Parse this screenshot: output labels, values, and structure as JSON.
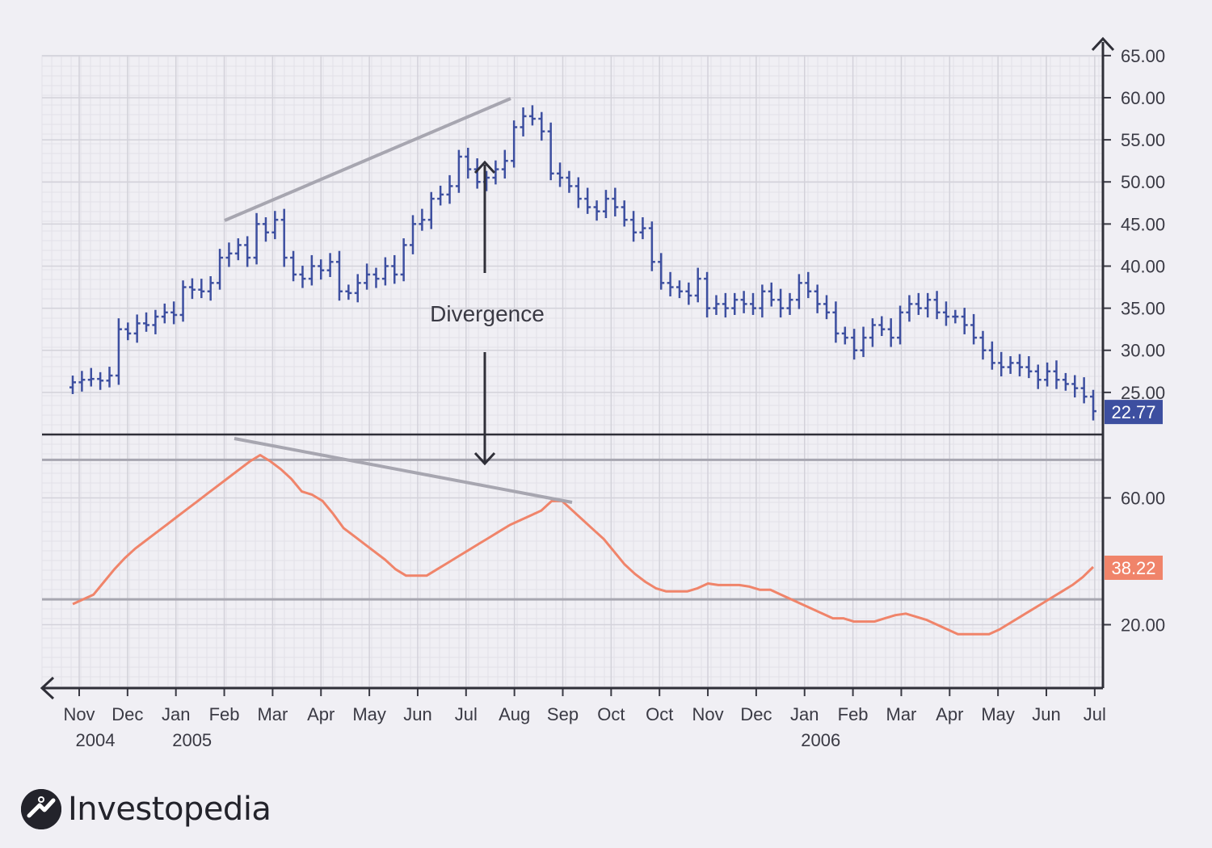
{
  "brand": {
    "name": "Investopedia"
  },
  "chart_data": [
    {
      "type": "ohlc",
      "series_name": "Price",
      "color": "#3d4fa0",
      "ylim": [
        20,
        67
      ],
      "yticks": [
        "25.00",
        "30.00",
        "35.00",
        "40.00",
        "45.00",
        "50.00",
        "55.00",
        "60.00",
        "65.00"
      ],
      "last_value_label": "22.77",
      "last_value_color": "#3d4fa0",
      "x_tick_labels": [
        "Nov",
        "Dec",
        "Jan",
        "Feb",
        "Mar",
        "Apr",
        "May",
        "Jun",
        "Jul",
        "Aug",
        "Sep",
        "Oct",
        "Oct",
        "Nov",
        "Dec",
        "Jan",
        "Feb",
        "Mar",
        "Apr",
        "May",
        "Jun",
        "Jul"
      ],
      "year_labels": [
        {
          "label": "2004",
          "at_tick": 0
        },
        {
          "label": "2005",
          "at_tick": 2
        },
        {
          "label": "2006",
          "at_tick": 15
        }
      ],
      "closes": [
        26.2,
        26.5,
        26.6,
        26.4,
        27.0,
        32.5,
        32.0,
        33.2,
        33.0,
        34.0,
        34.5,
        34.2,
        37.5,
        37.2,
        37.0,
        38.0,
        41.0,
        41.5,
        42.5,
        41.0,
        45.0,
        44.0,
        45.5,
        41.0,
        39.0,
        38.5,
        40.0,
        39.5,
        40.5,
        37.0,
        36.8,
        38.0,
        39.0,
        38.5,
        40.0,
        39.0,
        42.5,
        45.0,
        45.5,
        48.0,
        48.5,
        49.5,
        53.0,
        51.5,
        50.0,
        50.5,
        51.5,
        52.5,
        56.5,
        57.8,
        57.5,
        56.0,
        51.0,
        50.5,
        49.5,
        48.0,
        47.0,
        46.5,
        48.0,
        47.0,
        45.5,
        44.0,
        44.5,
        40.5,
        38.0,
        37.5,
        37.0,
        36.5,
        38.5,
        35.0,
        35.5,
        35.0,
        36.0,
        35.5,
        35.0,
        37.0,
        36.0,
        35.0,
        36.0,
        38.0,
        37.0,
        35.5,
        34.5,
        32.0,
        31.5,
        30.0,
        31.5,
        33.0,
        32.5,
        31.5,
        34.5,
        35.5,
        35.0,
        36.0,
        34.5,
        34.0,
        34.0,
        33.0,
        31.5,
        30.0,
        28.5,
        28.0,
        28.5,
        28.0,
        27.5,
        26.5,
        27.5,
        26.5,
        26.0,
        25.5,
        24.5,
        22.77
      ],
      "annotation": "Divergence"
    },
    {
      "type": "line",
      "series_name": "Oscillator",
      "color": "#f0846a",
      "ylim": [
        0,
        80
      ],
      "yticks": [
        "20.00",
        "60.00"
      ],
      "reference_lines": [
        28,
        72
      ],
      "last_value_label": "38.22",
      "last_value_color": "#f0846a",
      "values": [
        26.5,
        28.0,
        29.5,
        33.5,
        37.5,
        41.0,
        44.0,
        46.5,
        49.0,
        51.5,
        54.0,
        56.5,
        59.0,
        61.5,
        64.0,
        66.5,
        69.0,
        71.5,
        73.5,
        71.5,
        69.0,
        66.0,
        62.0,
        61.0,
        59.0,
        55.0,
        50.5,
        48.0,
        45.5,
        43.0,
        40.5,
        37.5,
        35.5,
        35.5,
        35.5,
        37.5,
        39.5,
        41.5,
        43.5,
        45.5,
        47.5,
        49.5,
        51.5,
        53.0,
        54.5,
        56.0,
        59.0,
        59.0,
        56.0,
        53.0,
        50.0,
        47.0,
        43.0,
        39.0,
        36.0,
        33.5,
        31.5,
        30.5,
        30.5,
        30.5,
        31.5,
        33.0,
        32.5,
        32.5,
        32.5,
        32.0,
        31.0,
        31.0,
        29.5,
        28.0,
        26.5,
        25.0,
        23.5,
        22.0,
        22.0,
        21.0,
        21.0,
        21.0,
        22.0,
        23.0,
        23.5,
        22.5,
        21.5,
        20.0,
        18.5,
        17.0,
        17.0,
        17.0,
        17.0,
        18.5,
        20.5,
        22.5,
        24.5,
        26.5,
        28.5,
        30.5,
        32.5,
        35.0,
        38.22
      ]
    }
  ]
}
